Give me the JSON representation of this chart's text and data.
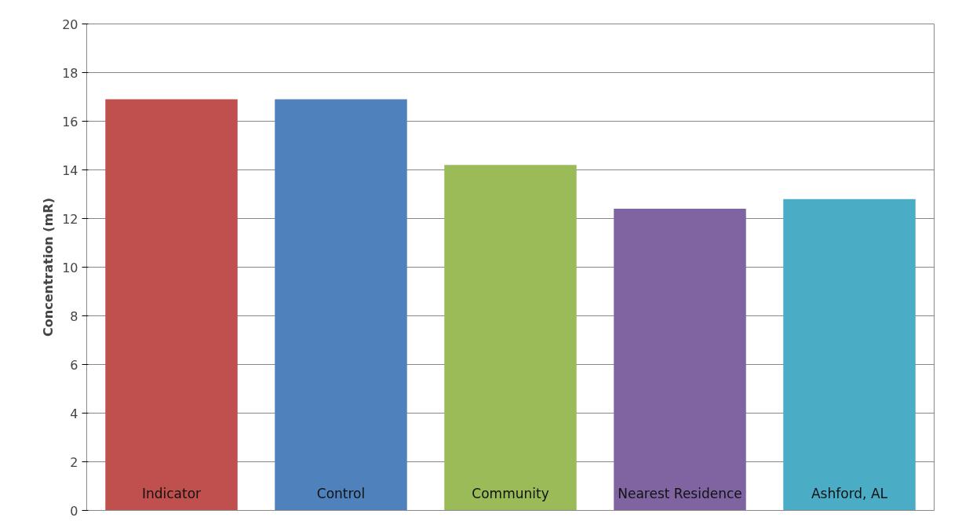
{
  "chart_data": {
    "type": "bar",
    "ylabel": "Concentration (mR)",
    "categories": [
      "Indicator",
      "Control",
      "Community",
      "Nearest Residence",
      "Ashford, AL"
    ],
    "values": [
      16.9,
      16.9,
      14.2,
      12.4,
      12.8
    ],
    "colors": [
      "#c0504d",
      "#4f81bd",
      "#9bbb59",
      "#8064a2",
      "#4bacc6"
    ],
    "ylim": [
      0,
      20
    ],
    "yticks": [
      0,
      2,
      4,
      6,
      8,
      10,
      12,
      14,
      16,
      18,
      20
    ],
    "grid": "y",
    "tick_labels": "y"
  }
}
